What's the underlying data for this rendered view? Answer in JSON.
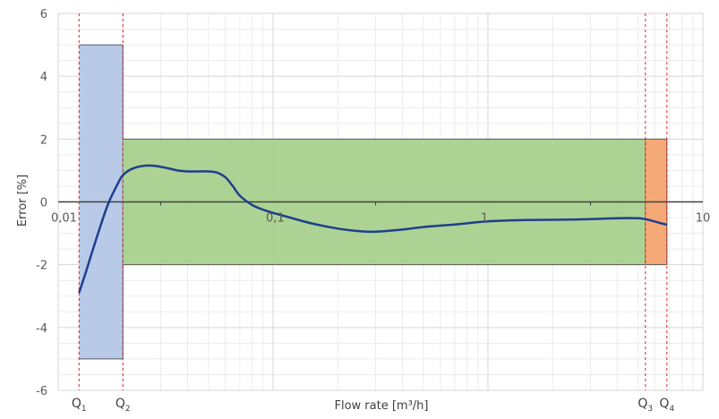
{
  "chart_data": {
    "type": "line",
    "xlabel": "Flow rate [m³/h]",
    "ylabel": "Error [%]",
    "x_scale": "log",
    "xlim": [
      0.01,
      10
    ],
    "ylim": [
      -6,
      6
    ],
    "y_ticks": [
      6,
      4,
      2,
      0,
      -2,
      -4,
      -6
    ],
    "y_tick_labels": [
      "6",
      "4",
      "2",
      "0",
      "-2",
      "-4",
      "-6"
    ],
    "x_ticks": [
      0.01,
      0.1,
      1,
      10
    ],
    "x_tick_labels": [
      "0,01",
      "0,1",
      "1",
      "10"
    ],
    "grid": true,
    "flow_points": [
      {
        "label": "Q",
        "sub": "1",
        "x": 0.0125
      },
      {
        "label": "Q",
        "sub": "2",
        "x": 0.02
      },
      {
        "label": "Q",
        "sub": "3",
        "x": 5.4
      },
      {
        "label": "Q",
        "sub": "4",
        "x": 6.8
      }
    ],
    "zones": [
      {
        "x": [
          0.0125,
          0.02
        ],
        "y": [
          -5,
          5
        ],
        "color": "#b4c7e7"
      },
      {
        "x": [
          0.02,
          5.4
        ],
        "y": [
          -2,
          2
        ],
        "color": "#a9d18e"
      },
      {
        "x": [
          5.4,
          6.8
        ],
        "y": [
          -2,
          2
        ],
        "color": "#f4a46f"
      }
    ],
    "series": [
      {
        "color": "#1f3f8c",
        "x": [
          0.0125,
          0.0135,
          0.015,
          0.017,
          0.019,
          0.02,
          0.022,
          0.025,
          0.028,
          0.032,
          0.036,
          0.04,
          0.045,
          0.05,
          0.055,
          0.06,
          0.065,
          0.07,
          0.08,
          0.09,
          0.1,
          0.12,
          0.15,
          0.2,
          0.25,
          0.3,
          0.4,
          0.5,
          0.7,
          1,
          1.5,
          2,
          3,
          4,
          5,
          5.5,
          6,
          6.8
        ],
        "y": [
          -2.9,
          -2.2,
          -1.2,
          -0.1,
          0.6,
          0.85,
          1.05,
          1.15,
          1.15,
          1.08,
          1.0,
          0.97,
          0.97,
          0.97,
          0.93,
          0.78,
          0.5,
          0.2,
          -0.1,
          -0.25,
          -0.35,
          -0.5,
          -0.68,
          -0.85,
          -0.93,
          -0.95,
          -0.88,
          -0.8,
          -0.72,
          -0.62,
          -0.58,
          -0.57,
          -0.55,
          -0.52,
          -0.52,
          -0.56,
          -0.63,
          -0.73
        ]
      }
    ]
  }
}
